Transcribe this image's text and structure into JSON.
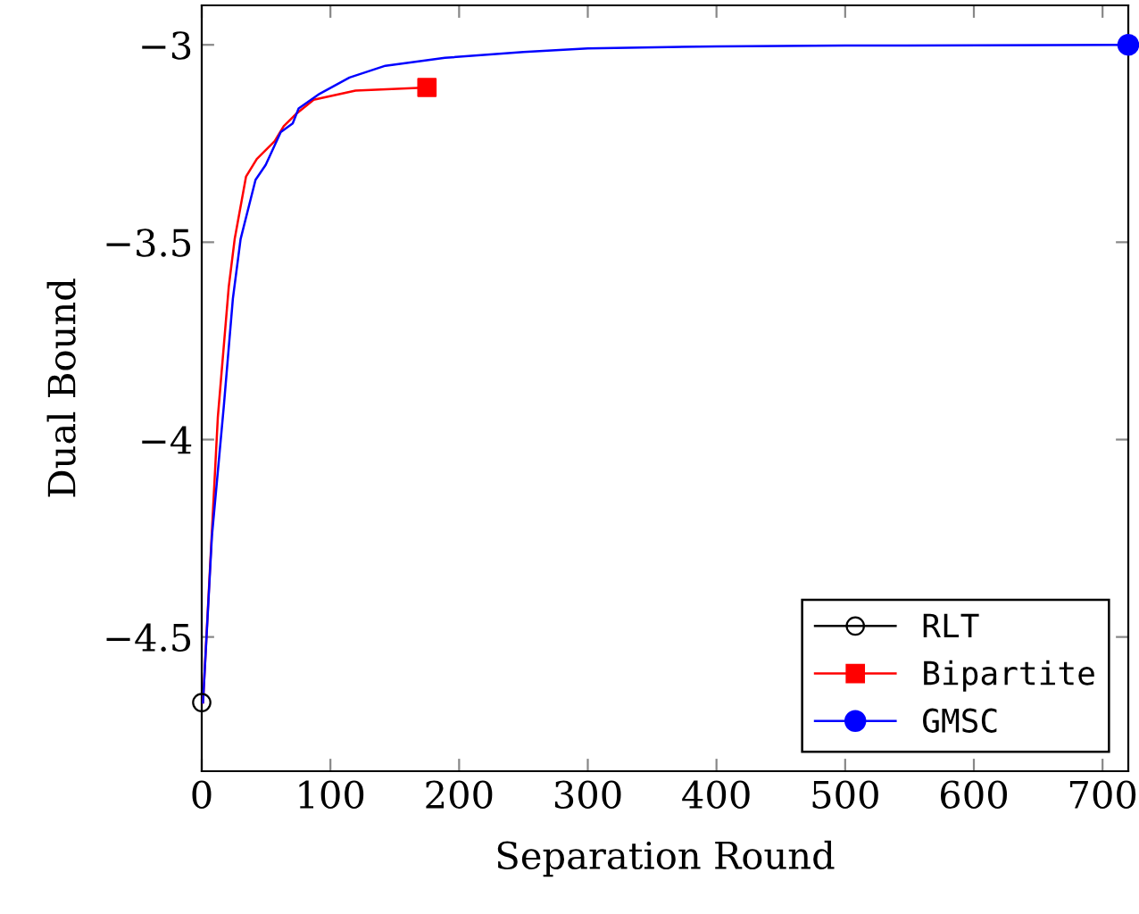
{
  "chart_data": {
    "type": "line",
    "xlabel": "Separation Round",
    "ylabel": "Dual Bound",
    "xlim": [
      0,
      720
    ],
    "ylim": [
      -4.84,
      -2.9
    ],
    "xticks": [
      0,
      100,
      200,
      300,
      400,
      500,
      600,
      700
    ],
    "yticks": [
      {
        "value": -4.5,
        "label": "−4.5"
      },
      {
        "value": -4,
        "label": "−4"
      },
      {
        "value": -3.5,
        "label": "−3.5"
      },
      {
        "value": -3,
        "label": "−3"
      }
    ],
    "grid": false,
    "legend": "bottom right",
    "series": [
      {
        "name": "RLT",
        "type": "scatter",
        "color": "#000000",
        "marker": "circle",
        "x": [
          0
        ],
        "values": [
          -4.666
        ]
      },
      {
        "name": "Bipartite",
        "color": "#ff0000",
        "x": [
          1,
          12.5,
          21,
          25.6,
          34.4,
          42.8,
          56.7,
          63.7,
          73,
          87,
          119.5,
          175
        ],
        "values": [
          -4.666,
          -3.944,
          -3.613,
          -3.492,
          -3.334,
          -3.289,
          -3.244,
          -3.206,
          -3.176,
          -3.139,
          -3.116,
          -3.108
        ]
      },
      {
        "type": "scatter",
        "color": "#ff0000",
        "marker": "square",
        "x": [
          175
        ],
        "values": [
          -3.108
        ]
      },
      {
        "name": "GMSC",
        "color": "#0000ff",
        "x": [
          1,
          7.9,
          17.2,
          24.2,
          30.2,
          41.8,
          49.7,
          61.4,
          70.7,
          75.3,
          91.6,
          114.8,
          142.7,
          189,
          250,
          300,
          400,
          500,
          720
        ],
        "values": [
          -4.666,
          -4.245,
          -3.914,
          -3.643,
          -3.492,
          -3.342,
          -3.304,
          -3.221,
          -3.199,
          -3.161,
          -3.124,
          -3.083,
          -3.053,
          -3.033,
          -3.018,
          -3.009,
          -3.004,
          -3.002,
          -3.0
        ]
      },
      {
        "type": "scatter",
        "color": "#0000ff",
        "marker": "circle",
        "x": [
          720
        ],
        "values": [
          -3.0
        ]
      }
    ]
  }
}
